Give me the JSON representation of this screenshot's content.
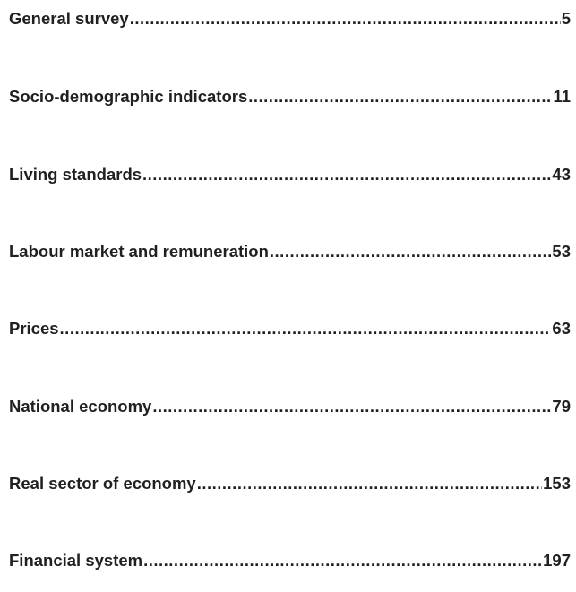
{
  "toc": {
    "entries": [
      {
        "title": "General survey",
        "page": "5"
      },
      {
        "title": "Socio-demographic indicators",
        "page": "11"
      },
      {
        "title": "Living standards",
        "page": "43"
      },
      {
        "title": "Labour market and remuneration",
        "page": "53"
      },
      {
        "title": "Prices",
        "page": "63"
      },
      {
        "title": "National economy",
        "page": "79"
      },
      {
        "title": "Real sector of economy",
        "page": "153"
      },
      {
        "title": "Financial system",
        "page": "197"
      }
    ]
  }
}
